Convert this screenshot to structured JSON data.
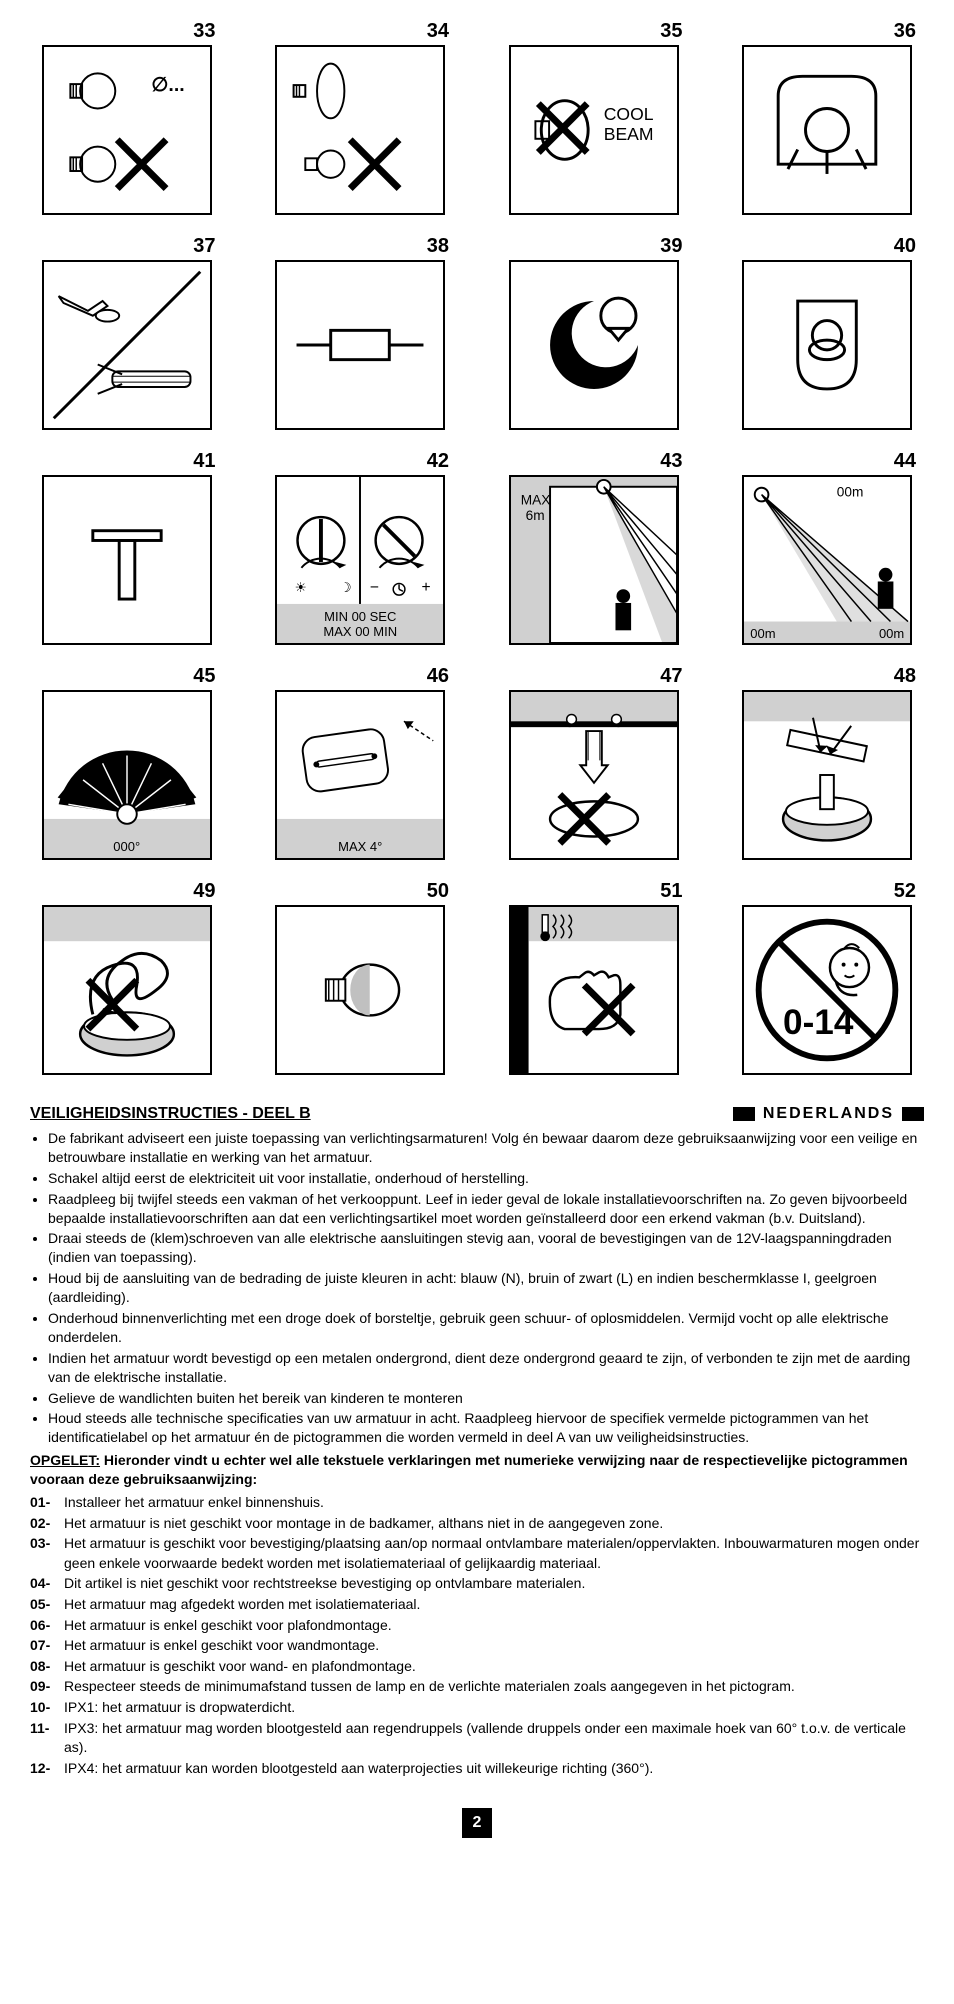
{
  "pictograms": [
    {
      "num": "33",
      "type": "bulb-diameter-no",
      "label": "",
      "svg": "p33"
    },
    {
      "num": "34",
      "type": "candle-bulbs-no",
      "label": "",
      "svg": "p34"
    },
    {
      "num": "35",
      "type": "cool-beam-no",
      "label": "COOL\nBEAM",
      "svg": "p35"
    },
    {
      "num": "36",
      "type": "lamp-shade",
      "label": "",
      "svg": "p36"
    },
    {
      "num": "37",
      "type": "tool-connect",
      "label": "",
      "svg": "p37"
    },
    {
      "num": "38",
      "type": "fuse",
      "label": "",
      "svg": "p38"
    },
    {
      "num": "39",
      "type": "night-day",
      "label": "",
      "svg": "p39"
    },
    {
      "num": "40",
      "type": "shield-lamp",
      "label": "",
      "svg": "p40"
    },
    {
      "num": "41",
      "type": "t-mount",
      "label": "",
      "svg": "p41"
    },
    {
      "num": "42",
      "type": "dials",
      "caption": "MIN 00 SEC\nMAX 00 MIN",
      "svg": "p42"
    },
    {
      "num": "43",
      "type": "sensor-height",
      "text": "MAX\n6m",
      "svg": "p43"
    },
    {
      "num": "44",
      "type": "sensor-range",
      "text": "00m",
      "corners": [
        "00m",
        "00m"
      ],
      "svg": "p44"
    },
    {
      "num": "45",
      "type": "angle-fan",
      "caption": "000°",
      "svg": "p45"
    },
    {
      "num": "46",
      "type": "tilt",
      "caption": "MAX 4°",
      "svg": "p46"
    },
    {
      "num": "47",
      "type": "ceiling-hook-no",
      "label": "",
      "svg": "p47"
    },
    {
      "num": "48",
      "type": "ceiling-install",
      "label": "",
      "svg": "p48"
    },
    {
      "num": "49",
      "type": "tangle-no",
      "label": "",
      "svg": "p49"
    },
    {
      "num": "50",
      "type": "led-bulb",
      "label": "",
      "svg": "p50"
    },
    {
      "num": "51",
      "type": "hot-touch-no",
      "label": "",
      "svg": "p51"
    },
    {
      "num": "52",
      "type": "age-0-14-no",
      "text": "0-14",
      "svg": "p52"
    }
  ],
  "section_title": "VEILIGHEIDSINSTRUCTIES - DEEL B",
  "language": "NEDERLANDS",
  "bullets": [
    "De fabrikant adviseert een juiste toepassing van verlichtingsarmaturen! Volg én bewaar daarom deze gebruiksaanwijzing voor een veilige en betrouwbare installatie en werking van het armatuur.",
    "Schakel altijd eerst de elektriciteit uit voor installatie, onderhoud of herstelling.",
    "Raadpleeg bij twijfel steeds een vakman of het verkooppunt. Leef in ieder geval de lokale installatievoorschriften na. Zo geven bijvoorbeeld bepaalde installatievoorschriften aan dat een verlichtingsartikel moet worden geïnstalleerd door een erkend vakman (b.v. Duitsland).",
    "Draai steeds de (klem)schroeven van alle elektrische aansluitingen stevig aan, vooral de bevestigingen van de 12V-laagspanningdraden (indien van toepassing).",
    "Houd bij de aansluiting van de bedrading de juiste kleuren in acht: blauw (N), bruin of zwart (L) en indien beschermklasse I, geelgroen (aardleiding).",
    "Onderhoud binnenverlichting met een droge doek of borsteltje, gebruik geen schuur- of oplosmiddelen. Vermijd vocht op alle elektrische onderdelen.",
    "Indien het armatuur wordt bevestigd op een metalen ondergrond, dient deze ondergrond geaard te zijn, of verbonden te zijn met de aarding van de elektrische installatie.",
    "Gelieve de wandlichten buiten het bereik van kinderen te monteren",
    "Houd steeds alle technische specificaties van uw armatuur in acht. Raadpleeg hiervoor de specifiek vermelde pictogrammen van het identificatielabel op het armatuur én de pictogrammen die worden vermeld in deel A van uw veiligheidsinstructies."
  ],
  "opgelet_label": "OPGELET:",
  "opgelet_text": "Hieronder vindt u echter wel alle tekstuele verklaringen met numerieke verwijzing naar de respectievelijke pictogrammen vooraan deze gebruiksaanwijzing:",
  "numbered": [
    {
      "n": "01-",
      "t": "Installeer het armatuur enkel binnenshuis."
    },
    {
      "n": "02-",
      "t": "Het armatuur is niet geschikt voor montage in de badkamer, althans niet in de aangegeven zone."
    },
    {
      "n": "03-",
      "t": "Het armatuur is geschikt voor bevestiging/plaatsing aan/op normaal ontvlambare materialen/oppervlakten. Inbouwarmaturen mogen onder geen enkele voorwaarde bedekt worden met isolatiemateriaal of gelijkaardig materiaal."
    },
    {
      "n": "04-",
      "t": "Dit artikel is niet geschikt voor rechtstreekse bevestiging op ontvlambare materialen."
    },
    {
      "n": "05-",
      "t": "Het armatuur mag afgedekt worden met isolatiemateriaal."
    },
    {
      "n": "06-",
      "t": "Het armatuur is enkel geschikt voor plafondmontage."
    },
    {
      "n": "07-",
      "t": "Het armatuur is enkel geschikt voor wandmontage."
    },
    {
      "n": "08-",
      "t": "Het armatuur is geschikt voor wand- en plafondmontage."
    },
    {
      "n": "09-",
      "t": "Respecteer steeds de minimumafstand tussen de lamp en de verlichte materialen zoals aangegeven in het pictogram."
    },
    {
      "n": "10-",
      "t": "IPX1: het armatuur is dropwaterdicht."
    },
    {
      "n": "11-",
      "t": "IPX3: het armatuur mag worden blootgesteld aan regendruppels (vallende druppels onder een maximale hoek van 60° t.o.v. de verticale as)."
    },
    {
      "n": "12-",
      "t": "IPX4: het armatuur kan worden blootgesteld aan waterprojecties uit willekeurige richting (360°)."
    }
  ],
  "page": "2",
  "colors": {
    "border": "#000",
    "gray": "#d0d0d0",
    "bg": "#fff"
  }
}
